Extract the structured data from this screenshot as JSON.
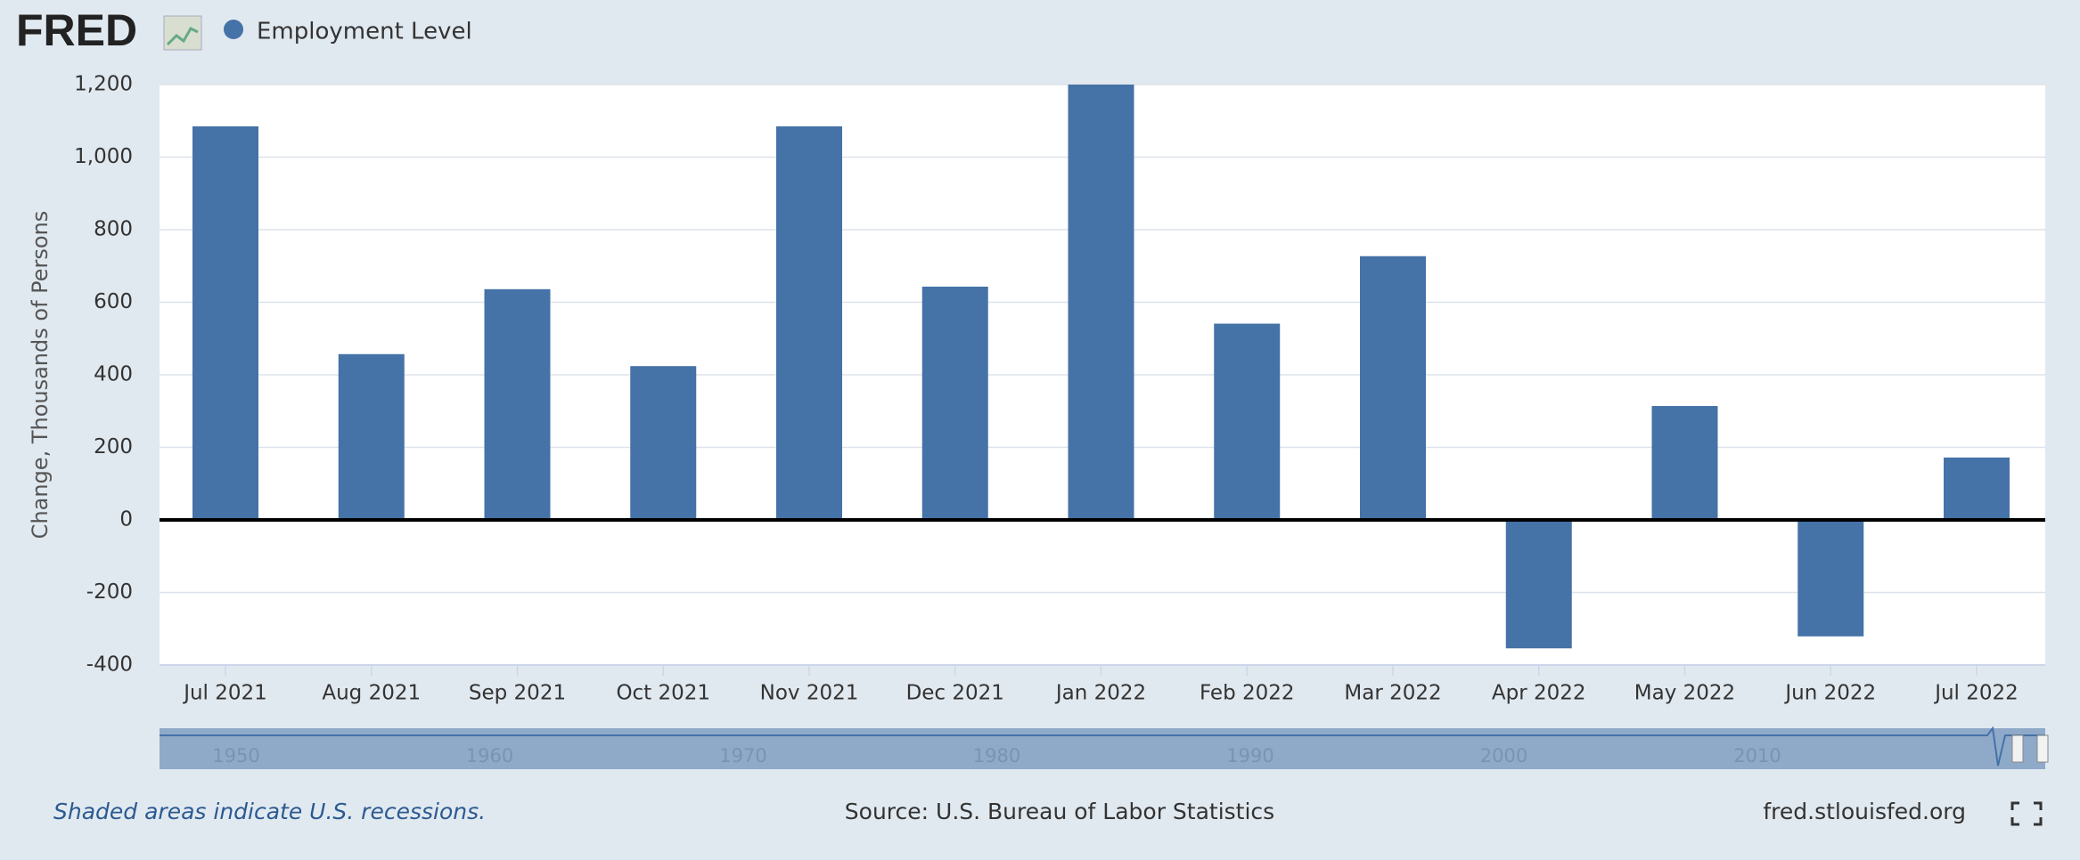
{
  "header": {
    "logo": "FRED"
  },
  "chart_data": {
    "type": "bar",
    "y_label": "Change, Thousands of Persons",
    "categories": [
      "Jul 2021",
      "Aug 2021",
      "Sep 2021",
      "Oct 2021",
      "Nov 2021",
      "Dec 2021",
      "Jan 2022",
      "Feb 2022",
      "Mar 2022",
      "Apr 2022",
      "May 2022",
      "Jun 2022",
      "Jul 2022"
    ],
    "series": [
      {
        "name": "Employment Level",
        "color": "#4572a7",
        "values": [
          1085,
          457,
          636,
          424,
          1085,
          643,
          1200,
          541,
          727,
          -354,
          314,
          -321,
          172
        ]
      }
    ],
    "ylim": [
      -400,
      1200
    ],
    "yticks": [
      -400,
      -200,
      0,
      200,
      400,
      600,
      800,
      {
        "value": 1000,
        "label": "1,000"
      },
      {
        "value": 1200,
        "label": "1,200"
      }
    ],
    "grid": true
  },
  "navigator": {
    "years": [
      "1950",
      "1960",
      "1970",
      "1980",
      "1990",
      "2000",
      "2010"
    ]
  },
  "footer": {
    "note": "Shaded areas indicate U.S. recessions.",
    "source": "Source: U.S. Bureau of Labor Statistics",
    "site": "fred.stlouisfed.org"
  }
}
